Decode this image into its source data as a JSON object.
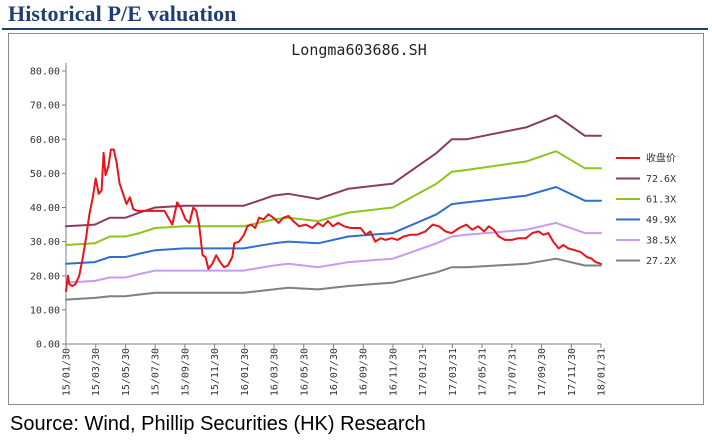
{
  "header": {
    "title": "Historical P/E valuation"
  },
  "footer": {
    "source": "Source:  Wind, Phillip Securities (HK) Research"
  },
  "colors": {
    "title": "#1F3E73",
    "price": "#E8141B",
    "band_72_6": "#8B3A62",
    "band_61_3": "#8CC41E",
    "band_49_9": "#2F6FD0",
    "band_38_5": "#C79BF0",
    "band_27_2": "#808080"
  },
  "chart_data": {
    "type": "line",
    "title": "Longma603686.SH",
    "xlabel": "",
    "ylabel": "",
    "ylim": [
      0,
      80
    ],
    "yticks": [
      "0.00",
      "10.00",
      "20.00",
      "30.00",
      "40.00",
      "50.00",
      "60.00",
      "70.00",
      "80.00"
    ],
    "xticks": [
      "15/01/30",
      "15/03/30",
      "15/05/30",
      "15/07/30",
      "15/09/30",
      "15/11/30",
      "16/01/30",
      "16/03/30",
      "16/05/30",
      "16/07/30",
      "16/09/30",
      "16/11/30",
      "17/01/31",
      "17/03/31",
      "17/05/31",
      "17/07/31",
      "17/09/30",
      "17/11/30",
      "18/01/31"
    ],
    "grid": false,
    "legend_position": "right",
    "series": [
      {
        "name": "收盘价",
        "color": "#E8141B",
        "width": 2,
        "points": [
          [
            "2015-01-30",
            15.5
          ],
          [
            "2015-02-03",
            20.0
          ],
          [
            "2015-02-06",
            17.5
          ],
          [
            "2015-02-12",
            17.0
          ],
          [
            "2015-02-18",
            17.5
          ],
          [
            "2015-02-26",
            20.0
          ],
          [
            "2015-03-05",
            25.0
          ],
          [
            "2015-03-12",
            31.0
          ],
          [
            "2015-03-19",
            38.0
          ],
          [
            "2015-03-26",
            43.0
          ],
          [
            "2015-04-01",
            48.5
          ],
          [
            "2015-04-07",
            44.0
          ],
          [
            "2015-04-13",
            45.0
          ],
          [
            "2015-04-17",
            56.0
          ],
          [
            "2015-04-21",
            49.5
          ],
          [
            "2015-04-27",
            52.0
          ],
          [
            "2015-05-02",
            57.0
          ],
          [
            "2015-05-08",
            57.0
          ],
          [
            "2015-05-14",
            53.0
          ],
          [
            "2015-05-20",
            47.0
          ],
          [
            "2015-05-27",
            44.0
          ],
          [
            "2015-06-03",
            41.0
          ],
          [
            "2015-06-10",
            43.0
          ],
          [
            "2015-06-17",
            39.5
          ],
          [
            "2015-06-26",
            39.0
          ],
          [
            "2015-07-15",
            39.0
          ],
          [
            "2015-08-05",
            39.0
          ],
          [
            "2015-08-20",
            39.0
          ],
          [
            "2015-08-28",
            37.0
          ],
          [
            "2015-09-05",
            35.0
          ],
          [
            "2015-09-15",
            41.5
          ],
          [
            "2015-09-22",
            40.0
          ],
          [
            "2015-10-02",
            36.5
          ],
          [
            "2015-10-10",
            35.5
          ],
          [
            "2015-10-18",
            40.0
          ],
          [
            "2015-10-24",
            39.0
          ],
          [
            "2015-10-30",
            35.0
          ],
          [
            "2015-11-06",
            26.0
          ],
          [
            "2015-11-12",
            25.5
          ],
          [
            "2015-11-18",
            22.0
          ],
          [
            "2015-11-26",
            23.5
          ],
          [
            "2015-12-04",
            26.0
          ],
          [
            "2015-12-12",
            24.0
          ],
          [
            "2015-12-20",
            22.5
          ],
          [
            "2015-12-28",
            23.0
          ],
          [
            "2016-01-06",
            25.5
          ],
          [
            "2016-01-10",
            29.5
          ],
          [
            "2016-01-20",
            30.0
          ],
          [
            "2016-01-30",
            32.0
          ],
          [
            "2016-02-06",
            34.5
          ],
          [
            "2016-02-14",
            35.0
          ],
          [
            "2016-02-22",
            34.0
          ],
          [
            "2016-03-01",
            37.0
          ],
          [
            "2016-03-10",
            36.5
          ],
          [
            "2016-03-20",
            38.0
          ],
          [
            "2016-03-30",
            37.0
          ],
          [
            "2016-04-10",
            35.5
          ],
          [
            "2016-04-20",
            37.0
          ],
          [
            "2016-04-30",
            37.5
          ],
          [
            "2016-05-10",
            36.0
          ],
          [
            "2016-05-22",
            34.5
          ],
          [
            "2016-06-05",
            35.0
          ],
          [
            "2016-06-18",
            34.0
          ],
          [
            "2016-06-30",
            35.5
          ],
          [
            "2016-07-10",
            34.5
          ],
          [
            "2016-07-20",
            36.0
          ],
          [
            "2016-07-30",
            34.5
          ],
          [
            "2016-08-10",
            35.5
          ],
          [
            "2016-08-22",
            34.5
          ],
          [
            "2016-09-05",
            34.0
          ],
          [
            "2016-09-25",
            34.0
          ],
          [
            "2016-10-06",
            32.0
          ],
          [
            "2016-10-15",
            33.0
          ],
          [
            "2016-10-25",
            30.0
          ],
          [
            "2016-11-05",
            31.0
          ],
          [
            "2016-11-15",
            30.5
          ],
          [
            "2016-11-28",
            31.0
          ],
          [
            "2016-12-10",
            30.5
          ],
          [
            "2016-12-22",
            31.5
          ],
          [
            "2017-01-05",
            32.0
          ],
          [
            "2017-01-18",
            32.0
          ],
          [
            "2017-02-05",
            33.0
          ],
          [
            "2017-02-20",
            35.0
          ],
          [
            "2017-03-05",
            34.5
          ],
          [
            "2017-03-18",
            33.0
          ],
          [
            "2017-03-31",
            32.5
          ],
          [
            "2017-04-15",
            34.0
          ],
          [
            "2017-04-30",
            35.0
          ],
          [
            "2017-05-12",
            33.5
          ],
          [
            "2017-05-24",
            34.5
          ],
          [
            "2017-06-05",
            33.0
          ],
          [
            "2017-06-15",
            34.5
          ],
          [
            "2017-06-25",
            33.5
          ],
          [
            "2017-07-05",
            31.5
          ],
          [
            "2017-07-18",
            30.5
          ],
          [
            "2017-08-01",
            30.5
          ],
          [
            "2017-08-15",
            31.0
          ],
          [
            "2017-08-30",
            31.0
          ],
          [
            "2017-09-12",
            32.5
          ],
          [
            "2017-09-25",
            33.0
          ],
          [
            "2017-10-05",
            32.0
          ],
          [
            "2017-10-15",
            32.5
          ],
          [
            "2017-10-25",
            30.0
          ],
          [
            "2017-11-05",
            28.0
          ],
          [
            "2017-11-15",
            29.0
          ],
          [
            "2017-11-25",
            28.0
          ],
          [
            "2017-12-08",
            27.5
          ],
          [
            "2017-12-20",
            27.0
          ],
          [
            "2018-01-02",
            25.5
          ],
          [
            "2018-01-12",
            25.0
          ],
          [
            "2018-01-20",
            24.0
          ],
          [
            "2018-01-31",
            23.5
          ]
        ]
      },
      {
        "name": "72.6X",
        "color": "#8B3A62",
        "width": 2,
        "points": [
          [
            "2015-01-30",
            34.5
          ],
          [
            "2015-03-30",
            35.0
          ],
          [
            "2015-04-30",
            37.0
          ],
          [
            "2015-06-01",
            37.0
          ],
          [
            "2015-06-30",
            38.5
          ],
          [
            "2015-08-01",
            40.0
          ],
          [
            "2015-09-30",
            40.5
          ],
          [
            "2015-12-31",
            40.5
          ],
          [
            "2016-01-29",
            40.5
          ],
          [
            "2016-03-31",
            43.5
          ],
          [
            "2016-04-30",
            44.0
          ],
          [
            "2016-06-30",
            42.5
          ],
          [
            "2016-08-31",
            45.5
          ],
          [
            "2016-11-30",
            47.0
          ],
          [
            "2017-02-28",
            56.0
          ],
          [
            "2017-03-31",
            60.0
          ],
          [
            "2017-04-30",
            60.0
          ],
          [
            "2017-08-31",
            63.5
          ],
          [
            "2017-10-31",
            67.0
          ],
          [
            "2017-12-29",
            61.0
          ],
          [
            "2018-01-31",
            61.0
          ]
        ]
      },
      {
        "name": "61.3X",
        "color": "#8CC41E",
        "width": 2,
        "points": [
          [
            "2015-01-30",
            29.0
          ],
          [
            "2015-03-30",
            29.5
          ],
          [
            "2015-04-30",
            31.5
          ],
          [
            "2015-06-01",
            31.5
          ],
          [
            "2015-06-30",
            32.5
          ],
          [
            "2015-08-01",
            34.0
          ],
          [
            "2015-09-30",
            34.5
          ],
          [
            "2015-12-31",
            34.5
          ],
          [
            "2016-01-29",
            34.5
          ],
          [
            "2016-03-31",
            36.5
          ],
          [
            "2016-04-30",
            37.0
          ],
          [
            "2016-06-30",
            36.0
          ],
          [
            "2016-08-31",
            38.5
          ],
          [
            "2016-11-30",
            40.0
          ],
          [
            "2017-02-28",
            47.0
          ],
          [
            "2017-03-31",
            50.5
          ],
          [
            "2017-04-30",
            51.0
          ],
          [
            "2017-08-31",
            53.5
          ],
          [
            "2017-10-31",
            56.5
          ],
          [
            "2017-12-29",
            51.5
          ],
          [
            "2018-01-31",
            51.5
          ]
        ]
      },
      {
        "name": "49.9X",
        "color": "#2F6FD0",
        "width": 2,
        "points": [
          [
            "2015-01-30",
            23.5
          ],
          [
            "2015-03-30",
            24.0
          ],
          [
            "2015-04-30",
            25.5
          ],
          [
            "2015-06-01",
            25.5
          ],
          [
            "2015-06-30",
            26.5
          ],
          [
            "2015-08-01",
            27.5
          ],
          [
            "2015-09-30",
            28.0
          ],
          [
            "2015-12-31",
            28.0
          ],
          [
            "2016-01-29",
            28.0
          ],
          [
            "2016-03-31",
            29.5
          ],
          [
            "2016-04-30",
            30.0
          ],
          [
            "2016-06-30",
            29.5
          ],
          [
            "2016-08-31",
            31.5
          ],
          [
            "2016-11-30",
            32.5
          ],
          [
            "2017-02-28",
            38.0
          ],
          [
            "2017-03-31",
            41.0
          ],
          [
            "2017-04-30",
            41.5
          ],
          [
            "2017-08-31",
            43.5
          ],
          [
            "2017-10-31",
            46.0
          ],
          [
            "2017-12-29",
            42.0
          ],
          [
            "2018-01-31",
            42.0
          ]
        ]
      },
      {
        "name": "38.5X",
        "color": "#C79BF0",
        "width": 2,
        "points": [
          [
            "2015-01-30",
            18.0
          ],
          [
            "2015-03-30",
            18.5
          ],
          [
            "2015-04-30",
            19.5
          ],
          [
            "2015-06-01",
            19.5
          ],
          [
            "2015-06-30",
            20.5
          ],
          [
            "2015-08-01",
            21.5
          ],
          [
            "2015-09-30",
            21.5
          ],
          [
            "2015-12-31",
            21.5
          ],
          [
            "2016-01-29",
            21.5
          ],
          [
            "2016-03-31",
            23.0
          ],
          [
            "2016-04-30",
            23.5
          ],
          [
            "2016-06-30",
            22.5
          ],
          [
            "2016-08-31",
            24.0
          ],
          [
            "2016-11-30",
            25.0
          ],
          [
            "2017-02-28",
            29.5
          ],
          [
            "2017-03-31",
            31.5
          ],
          [
            "2017-04-30",
            32.0
          ],
          [
            "2017-08-31",
            33.5
          ],
          [
            "2017-10-31",
            35.5
          ],
          [
            "2017-12-29",
            32.5
          ],
          [
            "2018-01-31",
            32.5
          ]
        ]
      },
      {
        "name": "27.2X",
        "color": "#808080",
        "width": 2,
        "points": [
          [
            "2015-01-30",
            13.0
          ],
          [
            "2015-03-30",
            13.5
          ],
          [
            "2015-04-30",
            14.0
          ],
          [
            "2015-06-01",
            14.0
          ],
          [
            "2015-06-30",
            14.5
          ],
          [
            "2015-08-01",
            15.0
          ],
          [
            "2015-09-30",
            15.0
          ],
          [
            "2015-12-31",
            15.0
          ],
          [
            "2016-01-29",
            15.0
          ],
          [
            "2016-03-31",
            16.0
          ],
          [
            "2016-04-30",
            16.5
          ],
          [
            "2016-06-30",
            16.0
          ],
          [
            "2016-08-31",
            17.0
          ],
          [
            "2016-11-30",
            18.0
          ],
          [
            "2017-02-28",
            21.0
          ],
          [
            "2017-03-31",
            22.5
          ],
          [
            "2017-04-30",
            22.5
          ],
          [
            "2017-08-31",
            23.5
          ],
          [
            "2017-10-31",
            25.0
          ],
          [
            "2017-12-29",
            23.0
          ],
          [
            "2018-01-31",
            23.0
          ]
        ]
      }
    ]
  }
}
